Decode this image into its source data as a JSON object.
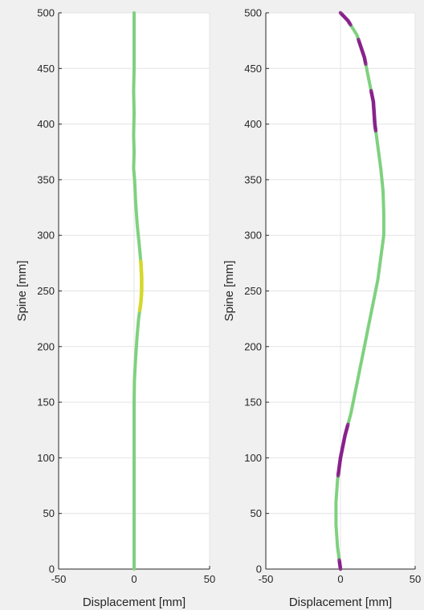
{
  "chart_data": [
    {
      "type": "line",
      "title": "",
      "xlabel": "Displacement [mm]",
      "ylabel": "Spine [mm]",
      "xlim": [
        -50,
        50
      ],
      "ylim": [
        0,
        500
      ],
      "xticks": [
        -50,
        0,
        50
      ],
      "yticks": [
        0,
        50,
        100,
        150,
        200,
        250,
        300,
        350,
        400,
        450,
        500
      ],
      "grid": true,
      "series": [
        {
          "color_base": "#7fd17f",
          "color_highlight": "#d6d82a",
          "points": [
            {
              "x": 0,
              "y": 0
            },
            {
              "x": 0,
              "y": 50
            },
            {
              "x": 0,
              "y": 100
            },
            {
              "x": 0,
              "y": 150
            },
            {
              "x": 0.2,
              "y": 170
            },
            {
              "x": 1,
              "y": 190
            },
            {
              "x": 2,
              "y": 210
            },
            {
              "x": 3,
              "y": 225
            },
            {
              "x": 4.5,
              "y": 240
            },
            {
              "x": 5,
              "y": 250
            },
            {
              "x": 5,
              "y": 262
            },
            {
              "x": 4.5,
              "y": 275
            },
            {
              "x": 3.5,
              "y": 290
            },
            {
              "x": 2,
              "y": 310
            },
            {
              "x": 1,
              "y": 330
            },
            {
              "x": 0.3,
              "y": 350
            },
            {
              "x": -0.3,
              "y": 360
            },
            {
              "x": 0,
              "y": 375
            },
            {
              "x": -0.3,
              "y": 390
            },
            {
              "x": 0,
              "y": 410
            },
            {
              "x": -0.3,
              "y": 430
            },
            {
              "x": 0,
              "y": 450
            },
            {
              "x": 0,
              "y": 470
            },
            {
              "x": 0,
              "y": 500
            }
          ],
          "highlight_ranges": [
            [
              232,
              276
            ]
          ]
        }
      ]
    },
    {
      "type": "line",
      "title": "",
      "xlabel": "Displacement [mm]",
      "ylabel": "Spine [mm]",
      "xlim": [
        -50,
        50
      ],
      "ylim": [
        0,
        500
      ],
      "xticks": [
        -50,
        0,
        50
      ],
      "yticks": [
        0,
        50,
        100,
        150,
        200,
        250,
        300,
        350,
        400,
        450,
        500
      ],
      "grid": true,
      "series": [
        {
          "color_base": "#7fd17f",
          "color_highlight": "#8a1f8c",
          "points": [
            {
              "x": 0,
              "y": 0
            },
            {
              "x": -2,
              "y": 20
            },
            {
              "x": -3,
              "y": 40
            },
            {
              "x": -3,
              "y": 60
            },
            {
              "x": -2,
              "y": 80
            },
            {
              "x": 0,
              "y": 100
            },
            {
              "x": 3,
              "y": 120
            },
            {
              "x": 7,
              "y": 140
            },
            {
              "x": 10,
              "y": 160
            },
            {
              "x": 13,
              "y": 180
            },
            {
              "x": 16,
              "y": 200
            },
            {
              "x": 19,
              "y": 220
            },
            {
              "x": 22,
              "y": 240
            },
            {
              "x": 25,
              "y": 260
            },
            {
              "x": 27,
              "y": 280
            },
            {
              "x": 29,
              "y": 300
            },
            {
              "x": 29,
              "y": 320
            },
            {
              "x": 28.5,
              "y": 340
            },
            {
              "x": 27,
              "y": 360
            },
            {
              "x": 25,
              "y": 380
            },
            {
              "x": 23,
              "y": 400
            },
            {
              "x": 22,
              "y": 420
            },
            {
              "x": 19,
              "y": 440
            },
            {
              "x": 16,
              "y": 460
            },
            {
              "x": 11,
              "y": 480
            },
            {
              "x": 5,
              "y": 493
            },
            {
              "x": 0,
              "y": 500
            }
          ],
          "highlight_ranges": [
            [
              0,
              8
            ],
            [
              85,
              130
            ],
            [
              395,
              430
            ],
            [
              455,
              475
            ],
            [
              490,
              500
            ]
          ]
        }
      ]
    }
  ]
}
